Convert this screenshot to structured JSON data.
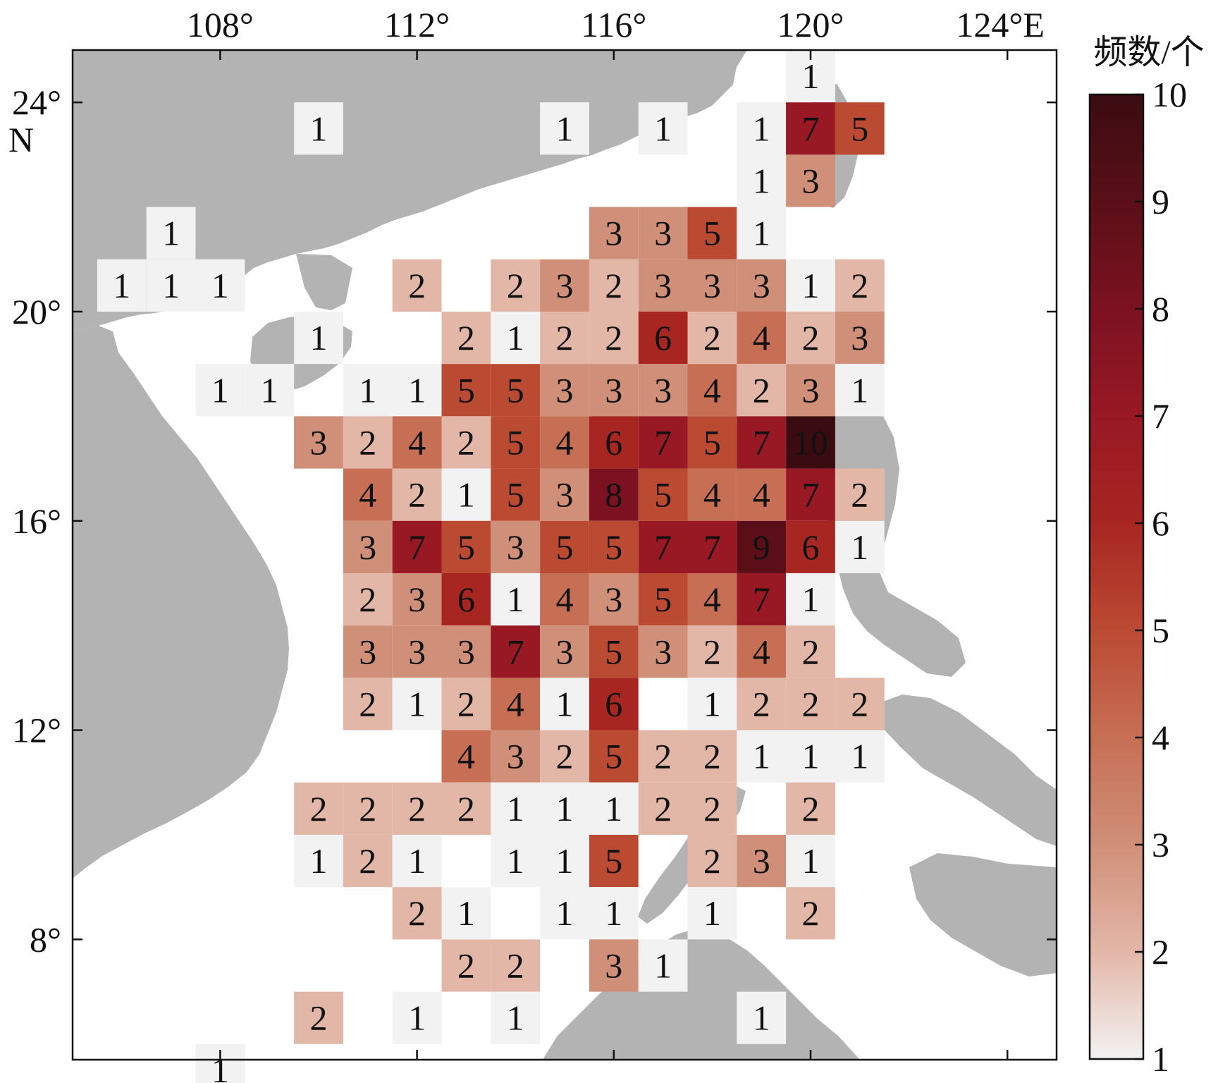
{
  "chart_data": {
    "type": "heatmap",
    "title": "",
    "xlabel": "",
    "ylabel": "",
    "lon_ticks": [
      {
        "value": 108,
        "label": "108°"
      },
      {
        "value": 112,
        "label": "112°"
      },
      {
        "value": 116,
        "label": "116°"
      },
      {
        "value": 120,
        "label": "120°"
      },
      {
        "value": 124,
        "label": "124°E"
      }
    ],
    "lat_ticks": [
      {
        "value": 24,
        "label": "24°",
        "sub": "N"
      },
      {
        "value": 20,
        "label": "20°"
      },
      {
        "value": 16,
        "label": "16°"
      },
      {
        "value": 12,
        "label": "12°"
      },
      {
        "value": 8,
        "label": "8°"
      }
    ],
    "xlim": [
      105,
      125
    ],
    "ylim": [
      5.7,
      25.0
    ],
    "cell_size_deg": 1,
    "colorbar": {
      "title": "频数/个",
      "range": [
        1,
        10
      ],
      "ticks": [
        "1",
        "2",
        "3",
        "4",
        "5",
        "6",
        "7",
        "8",
        "9",
        "10"
      ],
      "colors": [
        "#f2f2f2",
        "#e3b7a8",
        "#d08f78",
        "#c66f55",
        "#bb4a33",
        "#a72622",
        "#981824",
        "#7c1221",
        "#5a0f18",
        "#3a0c11"
      ]
    },
    "land_color": "#b3b3b3",
    "cells": [
      {
        "lon": 120,
        "lat": 24.5,
        "value": 1
      },
      {
        "lon": 110,
        "lat": 23.5,
        "value": 1
      },
      {
        "lon": 115,
        "lat": 23.5,
        "value": 1
      },
      {
        "lon": 117,
        "lat": 23.5,
        "value": 1
      },
      {
        "lon": 119,
        "lat": 23.5,
        "value": 1
      },
      {
        "lon": 120,
        "lat": 23.5,
        "value": 7
      },
      {
        "lon": 121,
        "lat": 23.5,
        "value": 5
      },
      {
        "lon": 119,
        "lat": 22.5,
        "value": 1
      },
      {
        "lon": 120,
        "lat": 22.5,
        "value": 3
      },
      {
        "lon": 107,
        "lat": 21.5,
        "value": 1
      },
      {
        "lon": 116,
        "lat": 21.5,
        "value": 3
      },
      {
        "lon": 117,
        "lat": 21.5,
        "value": 3
      },
      {
        "lon": 118,
        "lat": 21.5,
        "value": 5
      },
      {
        "lon": 119,
        "lat": 21.5,
        "value": 1
      },
      {
        "lon": 106,
        "lat": 20.5,
        "value": 1
      },
      {
        "lon": 107,
        "lat": 20.5,
        "value": 1
      },
      {
        "lon": 108,
        "lat": 20.5,
        "value": 1
      },
      {
        "lon": 112,
        "lat": 20.5,
        "value": 2
      },
      {
        "lon": 114,
        "lat": 20.5,
        "value": 2
      },
      {
        "lon": 115,
        "lat": 20.5,
        "value": 3
      },
      {
        "lon": 116,
        "lat": 20.5,
        "value": 2
      },
      {
        "lon": 117,
        "lat": 20.5,
        "value": 3
      },
      {
        "lon": 118,
        "lat": 20.5,
        "value": 3
      },
      {
        "lon": 119,
        "lat": 20.5,
        "value": 3
      },
      {
        "lon": 120,
        "lat": 20.5,
        "value": 1
      },
      {
        "lon": 121,
        "lat": 20.5,
        "value": 2
      },
      {
        "lon": 110,
        "lat": 19.5,
        "value": 1
      },
      {
        "lon": 113,
        "lat": 19.5,
        "value": 2
      },
      {
        "lon": 114,
        "lat": 19.5,
        "value": 1
      },
      {
        "lon": 115,
        "lat": 19.5,
        "value": 2
      },
      {
        "lon": 116,
        "lat": 19.5,
        "value": 2
      },
      {
        "lon": 117,
        "lat": 19.5,
        "value": 6
      },
      {
        "lon": 118,
        "lat": 19.5,
        "value": 2
      },
      {
        "lon": 119,
        "lat": 19.5,
        "value": 4
      },
      {
        "lon": 120,
        "lat": 19.5,
        "value": 2
      },
      {
        "lon": 121,
        "lat": 19.5,
        "value": 3
      },
      {
        "lon": 108,
        "lat": 18.5,
        "value": 1
      },
      {
        "lon": 109,
        "lat": 18.5,
        "value": 1
      },
      {
        "lon": 111,
        "lat": 18.5,
        "value": 1
      },
      {
        "lon": 112,
        "lat": 18.5,
        "value": 1
      },
      {
        "lon": 113,
        "lat": 18.5,
        "value": 5
      },
      {
        "lon": 114,
        "lat": 18.5,
        "value": 5
      },
      {
        "lon": 115,
        "lat": 18.5,
        "value": 3
      },
      {
        "lon": 116,
        "lat": 18.5,
        "value": 3
      },
      {
        "lon": 117,
        "lat": 18.5,
        "value": 3
      },
      {
        "lon": 118,
        "lat": 18.5,
        "value": 4
      },
      {
        "lon": 119,
        "lat": 18.5,
        "value": 2
      },
      {
        "lon": 120,
        "lat": 18.5,
        "value": 3
      },
      {
        "lon": 121,
        "lat": 18.5,
        "value": 1
      },
      {
        "lon": 110,
        "lat": 17.5,
        "value": 3
      },
      {
        "lon": 111,
        "lat": 17.5,
        "value": 2
      },
      {
        "lon": 112,
        "lat": 17.5,
        "value": 4
      },
      {
        "lon": 113,
        "lat": 17.5,
        "value": 2
      },
      {
        "lon": 114,
        "lat": 17.5,
        "value": 5
      },
      {
        "lon": 115,
        "lat": 17.5,
        "value": 4
      },
      {
        "lon": 116,
        "lat": 17.5,
        "value": 6
      },
      {
        "lon": 117,
        "lat": 17.5,
        "value": 7
      },
      {
        "lon": 118,
        "lat": 17.5,
        "value": 5
      },
      {
        "lon": 119,
        "lat": 17.5,
        "value": 7
      },
      {
        "lon": 120,
        "lat": 17.5,
        "value": 10
      },
      {
        "lon": 111,
        "lat": 16.5,
        "value": 4
      },
      {
        "lon": 112,
        "lat": 16.5,
        "value": 2
      },
      {
        "lon": 113,
        "lat": 16.5,
        "value": 1
      },
      {
        "lon": 114,
        "lat": 16.5,
        "value": 5
      },
      {
        "lon": 115,
        "lat": 16.5,
        "value": 3
      },
      {
        "lon": 116,
        "lat": 16.5,
        "value": 8
      },
      {
        "lon": 117,
        "lat": 16.5,
        "value": 5
      },
      {
        "lon": 118,
        "lat": 16.5,
        "value": 4
      },
      {
        "lon": 119,
        "lat": 16.5,
        "value": 4
      },
      {
        "lon": 120,
        "lat": 16.5,
        "value": 7
      },
      {
        "lon": 121,
        "lat": 16.5,
        "value": 2
      },
      {
        "lon": 111,
        "lat": 15.5,
        "value": 3
      },
      {
        "lon": 112,
        "lat": 15.5,
        "value": 7
      },
      {
        "lon": 113,
        "lat": 15.5,
        "value": 5
      },
      {
        "lon": 114,
        "lat": 15.5,
        "value": 3
      },
      {
        "lon": 115,
        "lat": 15.5,
        "value": 5
      },
      {
        "lon": 116,
        "lat": 15.5,
        "value": 5
      },
      {
        "lon": 117,
        "lat": 15.5,
        "value": 7
      },
      {
        "lon": 118,
        "lat": 15.5,
        "value": 7
      },
      {
        "lon": 119,
        "lat": 15.5,
        "value": 9
      },
      {
        "lon": 120,
        "lat": 15.5,
        "value": 6
      },
      {
        "lon": 121,
        "lat": 15.5,
        "value": 1
      },
      {
        "lon": 111,
        "lat": 14.5,
        "value": 2
      },
      {
        "lon": 112,
        "lat": 14.5,
        "value": 3
      },
      {
        "lon": 113,
        "lat": 14.5,
        "value": 6
      },
      {
        "lon": 114,
        "lat": 14.5,
        "value": 1
      },
      {
        "lon": 115,
        "lat": 14.5,
        "value": 4
      },
      {
        "lon": 116,
        "lat": 14.5,
        "value": 3
      },
      {
        "lon": 117,
        "lat": 14.5,
        "value": 5
      },
      {
        "lon": 118,
        "lat": 14.5,
        "value": 4
      },
      {
        "lon": 119,
        "lat": 14.5,
        "value": 7
      },
      {
        "lon": 120,
        "lat": 14.5,
        "value": 1
      },
      {
        "lon": 111,
        "lat": 13.5,
        "value": 3
      },
      {
        "lon": 112,
        "lat": 13.5,
        "value": 3
      },
      {
        "lon": 113,
        "lat": 13.5,
        "value": 3
      },
      {
        "lon": 114,
        "lat": 13.5,
        "value": 7
      },
      {
        "lon": 115,
        "lat": 13.5,
        "value": 3
      },
      {
        "lon": 116,
        "lat": 13.5,
        "value": 5
      },
      {
        "lon": 117,
        "lat": 13.5,
        "value": 3
      },
      {
        "lon": 118,
        "lat": 13.5,
        "value": 2
      },
      {
        "lon": 119,
        "lat": 13.5,
        "value": 4
      },
      {
        "lon": 120,
        "lat": 13.5,
        "value": 2
      },
      {
        "lon": 111,
        "lat": 12.5,
        "value": 2
      },
      {
        "lon": 112,
        "lat": 12.5,
        "value": 1
      },
      {
        "lon": 113,
        "lat": 12.5,
        "value": 2
      },
      {
        "lon": 114,
        "lat": 12.5,
        "value": 4
      },
      {
        "lon": 115,
        "lat": 12.5,
        "value": 1
      },
      {
        "lon": 116,
        "lat": 12.5,
        "value": 6
      },
      {
        "lon": 118,
        "lat": 12.5,
        "value": 1
      },
      {
        "lon": 119,
        "lat": 12.5,
        "value": 2
      },
      {
        "lon": 120,
        "lat": 12.5,
        "value": 2
      },
      {
        "lon": 121,
        "lat": 12.5,
        "value": 2
      },
      {
        "lon": 113,
        "lat": 11.5,
        "value": 4
      },
      {
        "lon": 114,
        "lat": 11.5,
        "value": 3
      },
      {
        "lon": 115,
        "lat": 11.5,
        "value": 2
      },
      {
        "lon": 116,
        "lat": 11.5,
        "value": 5
      },
      {
        "lon": 117,
        "lat": 11.5,
        "value": 2
      },
      {
        "lon": 118,
        "lat": 11.5,
        "value": 2
      },
      {
        "lon": 119,
        "lat": 11.5,
        "value": 1
      },
      {
        "lon": 120,
        "lat": 11.5,
        "value": 1
      },
      {
        "lon": 121,
        "lat": 11.5,
        "value": 1
      },
      {
        "lon": 110,
        "lat": 10.5,
        "value": 2
      },
      {
        "lon": 111,
        "lat": 10.5,
        "value": 2
      },
      {
        "lon": 112,
        "lat": 10.5,
        "value": 2
      },
      {
        "lon": 113,
        "lat": 10.5,
        "value": 2
      },
      {
        "lon": 114,
        "lat": 10.5,
        "value": 1
      },
      {
        "lon": 115,
        "lat": 10.5,
        "value": 1
      },
      {
        "lon": 116,
        "lat": 10.5,
        "value": 1
      },
      {
        "lon": 117,
        "lat": 10.5,
        "value": 2
      },
      {
        "lon": 118,
        "lat": 10.5,
        "value": 2
      },
      {
        "lon": 120,
        "lat": 10.5,
        "value": 2
      },
      {
        "lon": 110,
        "lat": 9.5,
        "value": 1
      },
      {
        "lon": 111,
        "lat": 9.5,
        "value": 2
      },
      {
        "lon": 112,
        "lat": 9.5,
        "value": 1
      },
      {
        "lon": 114,
        "lat": 9.5,
        "value": 1
      },
      {
        "lon": 115,
        "lat": 9.5,
        "value": 1
      },
      {
        "lon": 116,
        "lat": 9.5,
        "value": 5
      },
      {
        "lon": 118,
        "lat": 9.5,
        "value": 2
      },
      {
        "lon": 119,
        "lat": 9.5,
        "value": 3
      },
      {
        "lon": 120,
        "lat": 9.5,
        "value": 1
      },
      {
        "lon": 112,
        "lat": 8.5,
        "value": 2
      },
      {
        "lon": 113,
        "lat": 8.5,
        "value": 1
      },
      {
        "lon": 115,
        "lat": 8.5,
        "value": 1
      },
      {
        "lon": 116,
        "lat": 8.5,
        "value": 1
      },
      {
        "lon": 118,
        "lat": 8.5,
        "value": 1
      },
      {
        "lon": 120,
        "lat": 8.5,
        "value": 2
      },
      {
        "lon": 113,
        "lat": 7.5,
        "value": 2
      },
      {
        "lon": 114,
        "lat": 7.5,
        "value": 2
      },
      {
        "lon": 116,
        "lat": 7.5,
        "value": 3
      },
      {
        "lon": 117,
        "lat": 7.5,
        "value": 1
      },
      {
        "lon": 110,
        "lat": 6.5,
        "value": 2
      },
      {
        "lon": 112,
        "lat": 6.5,
        "value": 1
      },
      {
        "lon": 114,
        "lat": 6.5,
        "value": 1
      },
      {
        "lon": 119,
        "lat": 6.5,
        "value": 1
      },
      {
        "lon": 108,
        "lat": 5.5,
        "value": 1
      }
    ]
  }
}
